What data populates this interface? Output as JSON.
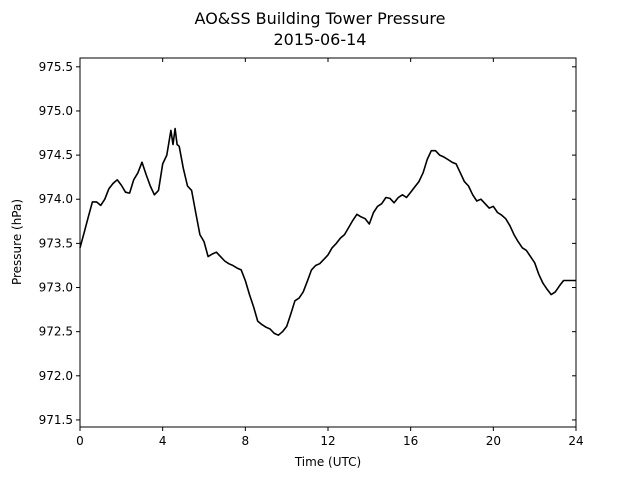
{
  "chart_data": {
    "type": "line",
    "title": "AO&SS Building Tower Pressure",
    "subtitle": "2015-06-14",
    "xlabel": "Time (UTC)",
    "ylabel": "Pressure (hPa)",
    "xlim": [
      0,
      24
    ],
    "ylim": [
      971.42,
      975.6
    ],
    "x_ticks": [
      "0",
      "4",
      "8",
      "12",
      "16",
      "20",
      "24"
    ],
    "y_ticks": [
      "971.5",
      "972.0",
      "972.5",
      "973.0",
      "973.5",
      "974.0",
      "974.5",
      "975.0",
      "975.5"
    ],
    "grid": false,
    "line_color": "#000000",
    "series": [
      {
        "x": [
          0.0,
          0.2,
          0.4,
          0.6,
          0.8,
          1.0,
          1.2,
          1.4,
          1.6,
          1.8,
          2.0,
          2.2,
          2.4,
          2.6,
          2.8,
          3.0,
          3.2,
          3.4,
          3.6,
          3.8,
          4.0,
          4.2,
          4.4,
          4.5,
          4.6,
          4.7,
          4.8,
          5.0,
          5.2,
          5.4,
          5.6,
          5.8,
          6.0,
          6.2,
          6.4,
          6.6,
          6.8,
          7.0,
          7.2,
          7.4,
          7.6,
          7.8,
          8.0,
          8.2,
          8.4,
          8.6,
          8.8,
          9.0,
          9.2,
          9.4,
          9.6,
          9.8,
          10.0,
          10.2,
          10.4,
          10.6,
          10.8,
          11.0,
          11.2,
          11.4,
          11.6,
          11.8,
          12.0,
          12.2,
          12.4,
          12.6,
          12.8,
          13.0,
          13.2,
          13.4,
          13.6,
          13.8,
          14.0,
          14.2,
          14.4,
          14.6,
          14.8,
          15.0,
          15.2,
          15.4,
          15.6,
          15.8,
          16.0,
          16.2,
          16.4,
          16.6,
          16.8,
          17.0,
          17.2,
          17.4,
          17.6,
          17.8,
          18.0,
          18.2,
          18.4,
          18.6,
          18.8,
          19.0,
          19.2,
          19.4,
          19.6,
          19.8,
          20.0,
          20.2,
          20.4,
          20.6,
          20.8,
          21.0,
          21.2,
          21.4,
          21.6,
          21.8,
          22.0,
          22.2,
          22.4,
          22.6,
          22.8,
          23.0,
          23.2,
          23.4,
          23.6,
          23.8,
          24.0
        ],
        "values": [
          973.45,
          973.62,
          973.8,
          973.97,
          973.97,
          973.93,
          974.0,
          974.12,
          974.18,
          974.22,
          974.16,
          974.08,
          974.07,
          974.22,
          974.3,
          974.42,
          974.28,
          974.15,
          974.05,
          974.1,
          974.4,
          974.5,
          974.78,
          974.62,
          974.8,
          974.62,
          974.6,
          974.35,
          974.15,
          974.1,
          973.85,
          973.6,
          973.52,
          973.35,
          973.38,
          973.4,
          973.35,
          973.3,
          973.27,
          973.25,
          973.22,
          973.2,
          973.08,
          972.92,
          972.78,
          972.62,
          972.58,
          972.55,
          972.53,
          972.48,
          972.46,
          972.5,
          972.56,
          972.7,
          972.85,
          972.88,
          972.95,
          973.07,
          973.2,
          973.25,
          973.27,
          973.32,
          973.37,
          973.45,
          973.5,
          973.56,
          973.6,
          973.68,
          973.76,
          973.83,
          973.8,
          973.78,
          973.72,
          973.85,
          973.92,
          973.95,
          974.02,
          974.01,
          973.96,
          974.02,
          974.05,
          974.02,
          974.08,
          974.14,
          974.2,
          974.3,
          974.45,
          974.55,
          974.55,
          974.5,
          974.48,
          974.45,
          974.42,
          974.4,
          974.3,
          974.2,
          974.15,
          974.05,
          973.98,
          974.0,
          973.95,
          973.9,
          973.92,
          973.85,
          973.82,
          973.78,
          973.7,
          973.6,
          973.52,
          973.45,
          973.42,
          973.35,
          973.28,
          973.15,
          973.05,
          972.98,
          972.92,
          972.95,
          973.02,
          973.08,
          973.08,
          973.08,
          973.08
        ]
      }
    ]
  }
}
